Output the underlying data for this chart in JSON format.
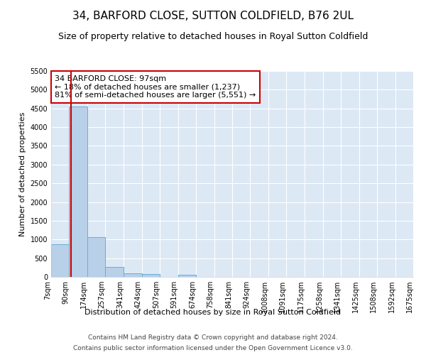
{
  "title": "34, BARFORD CLOSE, SUTTON COLDFIELD, B76 2UL",
  "subtitle": "Size of property relative to detached houses in Royal Sutton Coldfield",
  "ylabel": "Number of detached properties",
  "xlabel": "Distribution of detached houses by size in Royal Sutton Coldfield",
  "footer_line1": "Contains HM Land Registry data © Crown copyright and database right 2024.",
  "footer_line2": "Contains public sector information licensed under the Open Government Licence v3.0.",
  "bin_edges": [
    7,
    90,
    174,
    257,
    341,
    424,
    507,
    591,
    674,
    758,
    841,
    924,
    1008,
    1091,
    1175,
    1258,
    1341,
    1425,
    1508,
    1592,
    1675
  ],
  "bar_heights": [
    880,
    4560,
    1060,
    275,
    90,
    80,
    0,
    50,
    0,
    0,
    0,
    0,
    0,
    0,
    0,
    0,
    0,
    0,
    0,
    0
  ],
  "bar_color": "#b8d0e8",
  "bar_edge_color": "#6aaed6",
  "property_size": 97,
  "annotation_line1": "34 BARFORD CLOSE: 97sqm",
  "annotation_line2": "← 18% of detached houses are smaller (1,237)",
  "annotation_line3": "81% of semi-detached houses are larger (5,551) →",
  "vline_color": "#cc0000",
  "annotation_box_edge_color": "#cc0000",
  "ylim": [
    0,
    5500
  ],
  "yticks": [
    0,
    500,
    1000,
    1500,
    2000,
    2500,
    3000,
    3500,
    4000,
    4500,
    5000,
    5500
  ],
  "background_color": "#dde8f5",
  "grid_color": "#ffffff",
  "title_fontsize": 11,
  "subtitle_fontsize": 9,
  "axis_label_fontsize": 8,
  "tick_fontsize": 7,
  "annotation_fontsize": 8,
  "footer_fontsize": 6.5
}
